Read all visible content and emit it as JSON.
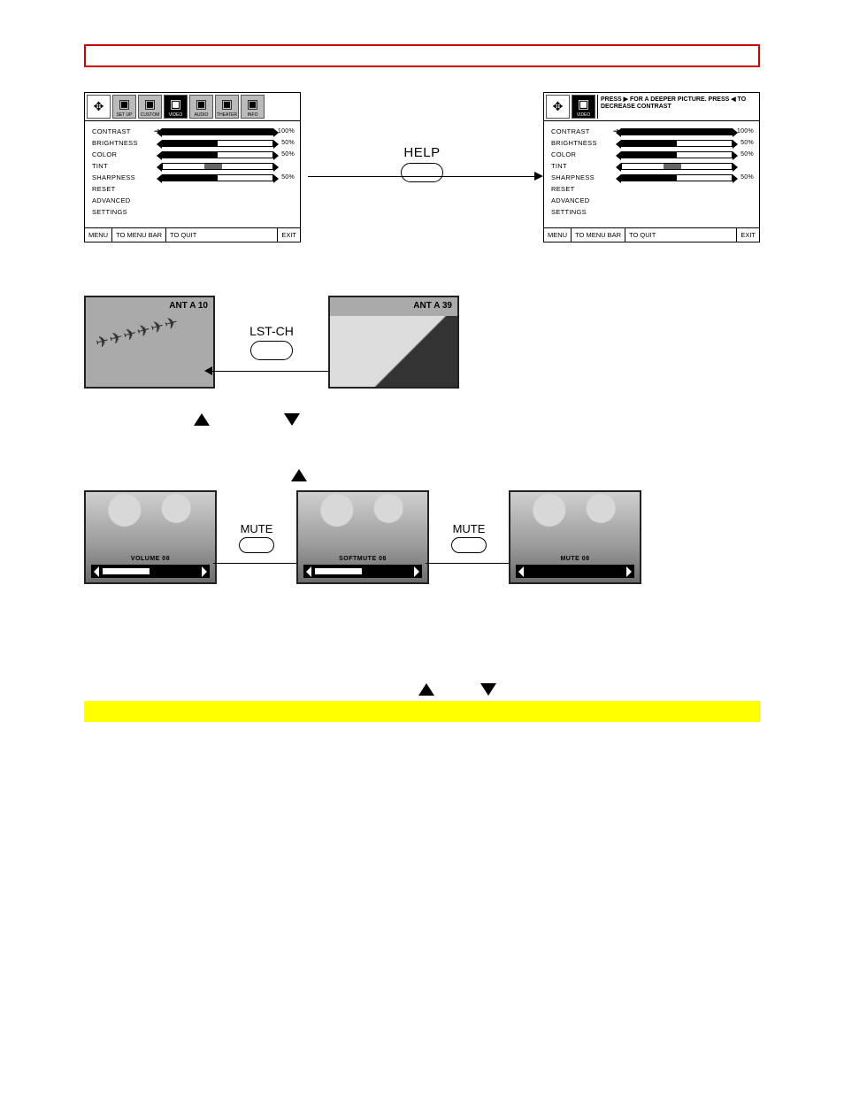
{
  "panel_icons": [
    {
      "label": "SET UP",
      "selected": false
    },
    {
      "label": "CUSTOM",
      "selected": false
    },
    {
      "label": "VIDEO",
      "selected": true
    },
    {
      "label": "AUDIO",
      "selected": false
    },
    {
      "label": "THEATER",
      "selected": false
    },
    {
      "label": "INFO",
      "selected": false
    }
  ],
  "panel_hint": "PRESS ▶ FOR A DEEPER PICTURE. PRESS ◀ TO DECREASE CONTRAST",
  "video_settings": [
    {
      "label": "CONTRAST",
      "selected": true,
      "fill": 100,
      "pct": "100%"
    },
    {
      "label": "BRIGHTNESS",
      "selected": false,
      "fill": 50,
      "pct": "50%"
    },
    {
      "label": "COLOR",
      "selected": false,
      "fill": 50,
      "pct": "50%"
    },
    {
      "label": "TINT",
      "selected": false,
      "center": true,
      "pct": ""
    },
    {
      "label": "SHARPNESS",
      "selected": false,
      "fill": 50,
      "pct": "50%"
    },
    {
      "label": "RESET",
      "nobar": true
    },
    {
      "label": "ADVANCED",
      "nobar": true
    },
    {
      "label": "  SETTINGS",
      "nobar": true
    }
  ],
  "footer": {
    "menu": "MENU",
    "tobar": "TO MENU BAR",
    "toquit": "TO QUIT",
    "exit": "EXIT"
  },
  "help_label": "HELP",
  "lstch": {
    "left_channel": "ANT A  10",
    "right_channel": "ANT A  39",
    "label": "LST-CH"
  },
  "mute": {
    "label": "MUTE",
    "screens": [
      {
        "text": "VOLUME  08",
        "fill": 40
      },
      {
        "text": "SOFTMUTE  08",
        "fill": 40
      },
      {
        "text": "MUTE  08",
        "fill": 0
      }
    ]
  }
}
